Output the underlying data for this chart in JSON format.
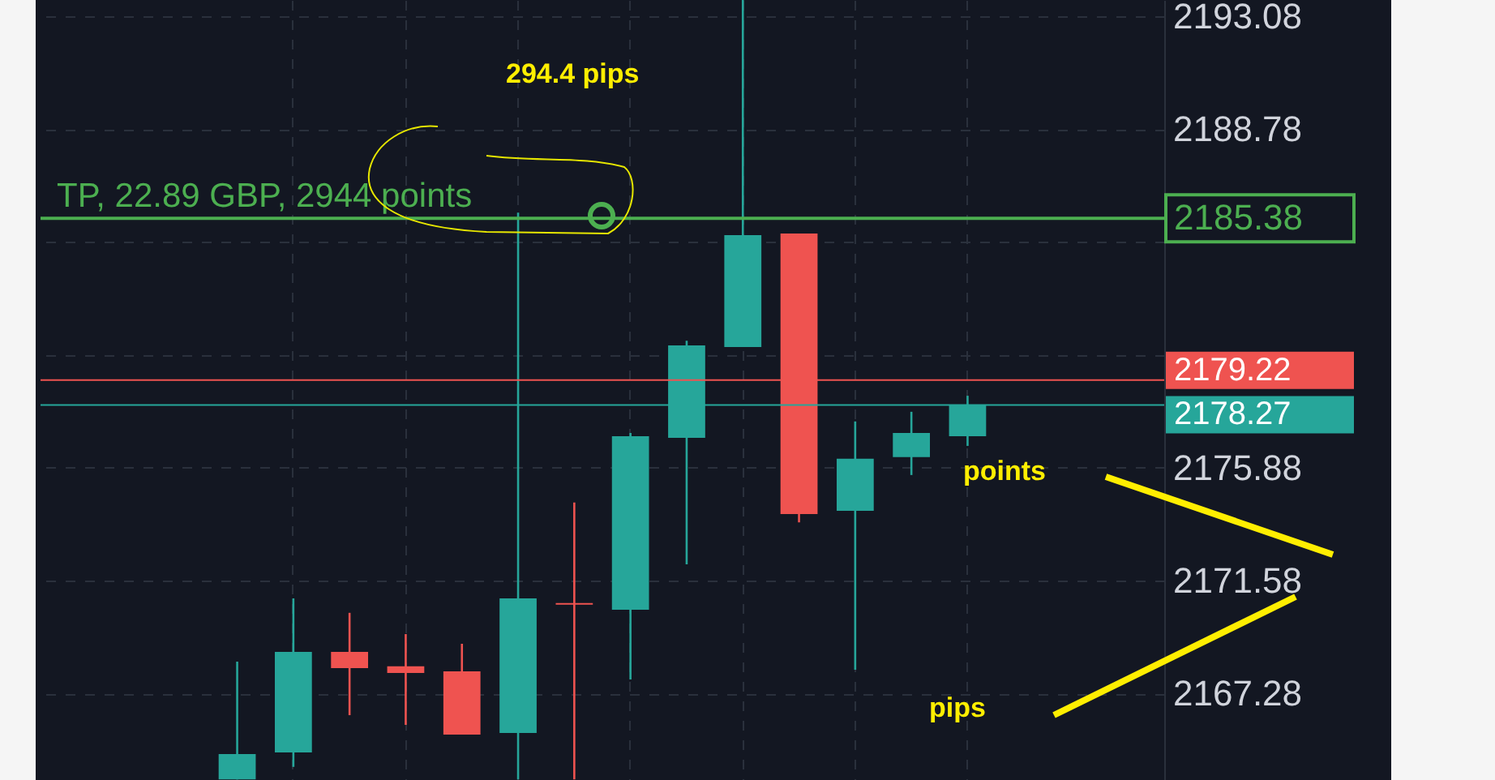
{
  "chart_data": {
    "type": "candlestick",
    "categories": [
      null,
      null,
      null,
      null,
      null,
      null,
      null,
      null,
      null,
      null,
      null,
      null,
      null,
      null
    ],
    "ohlc": [
      [
        2164.0,
        2168.49,
        2164.0,
        2164.97
      ],
      [
        2165.03,
        2170.9,
        2164.48,
        2168.86
      ],
      [
        2168.86,
        2170.35,
        2166.45,
        2168.24
      ],
      [
        2168.31,
        2169.54,
        2166.08,
        2168.06
      ],
      [
        2168.12,
        2169.17,
        2165.71,
        2165.71
      ],
      [
        2165.77,
        2185.6,
        2164.0,
        2170.9
      ],
      [
        2170.72,
        2174.55,
        2164.0,
        2170.66
      ],
      [
        2170.47,
        2177.2,
        2167.81,
        2177.08
      ],
      [
        2177.02,
        2180.72,
        2172.2,
        2180.54
      ],
      [
        2180.48,
        2193.7,
        2180.48,
        2184.74
      ],
      [
        2184.8,
        2184.8,
        2173.8,
        2174.11
      ],
      [
        2174.24,
        2177.64,
        2168.18,
        2176.22
      ],
      [
        2176.28,
        2178.01,
        2175.6,
        2177.2
      ],
      [
        2177.08,
        2178.62,
        2176.71,
        2178.27
      ]
    ],
    "colors": [
      "#26a69a",
      "#26a69a",
      "#ef5350",
      "#ef5350",
      "#ef5350",
      "#26a69a",
      "#ef5350",
      "#26a69a",
      "#26a69a",
      "#26a69a",
      "#ef5350",
      "#26a69a",
      "#26a69a",
      "#26a69a"
    ],
    "ylim": [
      2163.98,
      2193.7
    ],
    "yticks": [
      2167.28,
      2171.58,
      2175.88,
      {
        "value": 2180.18,
        "label": null
      },
      {
        "value": 2184.48,
        "label": null
      },
      2188.78,
      2193.08
    ],
    "ref_lines": [
      {
        "axis": "y",
        "value": 2185.38,
        "label": "TP, 22.89 GBP, 2944 points",
        "color": "#4caf50"
      },
      {
        "axis": "y",
        "value": 2179.22,
        "label": "2179.22",
        "color": "#ef5350"
      },
      {
        "axis": "y",
        "value": 2178.27,
        "label": "2178.27",
        "color": "#26a69a"
      }
    ],
    "annotations": [
      "294.4 pips",
      "points",
      "pips",
      "2185.38"
    ],
    "grid": true,
    "tick_labels": "y"
  }
}
